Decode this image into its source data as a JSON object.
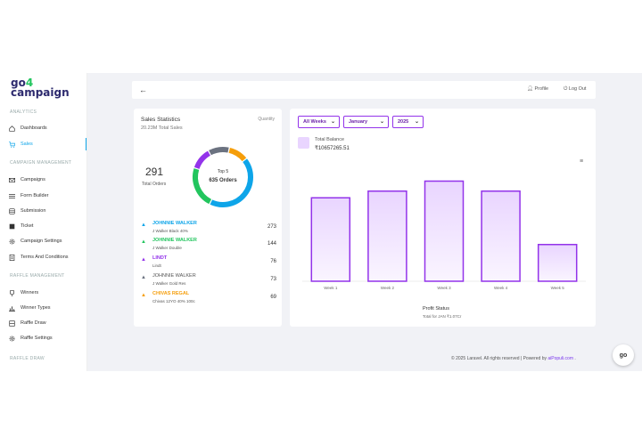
{
  "logo": {
    "line1": "go",
    "line1_accent": "4",
    "line2": "campaign"
  },
  "sidebar": {
    "sections": [
      {
        "label": "ANALYTICS"
      },
      {
        "label": "CAMPAIGN MANAGEMENT"
      },
      {
        "label": "RAFFLE MANAGEMENT"
      },
      {
        "label": "RAFFLE DRAW"
      }
    ],
    "items": [
      {
        "label": "Dashboards",
        "icon": "home-icon"
      },
      {
        "label": "Sales",
        "icon": "cart-icon"
      },
      {
        "label": "Campaigns",
        "icon": "mail-icon"
      },
      {
        "label": "Form Builder",
        "icon": "form-icon"
      },
      {
        "label": "Submission",
        "icon": "database-icon"
      },
      {
        "label": "Ticket",
        "icon": "ticket-icon"
      },
      {
        "label": "Campaign Settings",
        "icon": "gear-icon"
      },
      {
        "label": "Terms And Conditions",
        "icon": "document-icon"
      },
      {
        "label": "Winners",
        "icon": "trophy-icon"
      },
      {
        "label": "Winner Types",
        "icon": "bar-icon"
      },
      {
        "label": "Raffle Draw",
        "icon": "draw-icon"
      },
      {
        "label": "Raffle Settings",
        "icon": "gear-icon"
      }
    ]
  },
  "topbar": {
    "back": "←",
    "profile": "Profile",
    "logout": "Log Out"
  },
  "sales": {
    "title": "Sales Statistics",
    "subtitle": "20.23M Total Sales",
    "quantity": "Quantity",
    "total_orders_value": "291",
    "total_orders_label": "Total Orders",
    "donut_top": "Top 5",
    "donut_orders": "635 Orders",
    "legend": [
      {
        "name": "JOHNNIE WALKER",
        "sub": "J Walker Black 40%",
        "count": "273",
        "color": "#0ea5e9"
      },
      {
        "name": "JOHNNIE WALKER",
        "sub": "J Walker Double",
        "count": "144",
        "color": "#22c55e"
      },
      {
        "name": "LINDT",
        "sub": "Lindt",
        "count": "76",
        "color": "#9333ea"
      },
      {
        "name": "JOHNNIE WALKER",
        "sub": "J Walker Gold Res",
        "count": "73",
        "color": "#6b7280"
      },
      {
        "name": "CHIVAS REGAL",
        "sub": "Chivas 12YO 40% 100c",
        "count": "69",
        "color": "#f59e0b"
      }
    ]
  },
  "filters": {
    "weeks": "All Weeks",
    "month": "January",
    "year": "2025"
  },
  "balance": {
    "label": "Total Balance",
    "value": "₹10657265.51"
  },
  "chart_data": {
    "type": "bar",
    "categories": [
      "Week 1",
      "Week 2",
      "Week 3",
      "Week 4",
      "Week 5"
    ],
    "values": [
      2.5,
      2.7,
      3.0,
      2.7,
      1.1
    ],
    "title": "Profit Status",
    "subtitle": "Total for JAN ₹1.07Cr",
    "ymax": 3.2,
    "color": "#9333ea"
  },
  "footer": {
    "text": "© 2025 Laravel. All rights reserved | Powered by ",
    "link": "aiPopuli.com",
    "suffix": " ."
  },
  "fab": {
    "label": "go"
  }
}
